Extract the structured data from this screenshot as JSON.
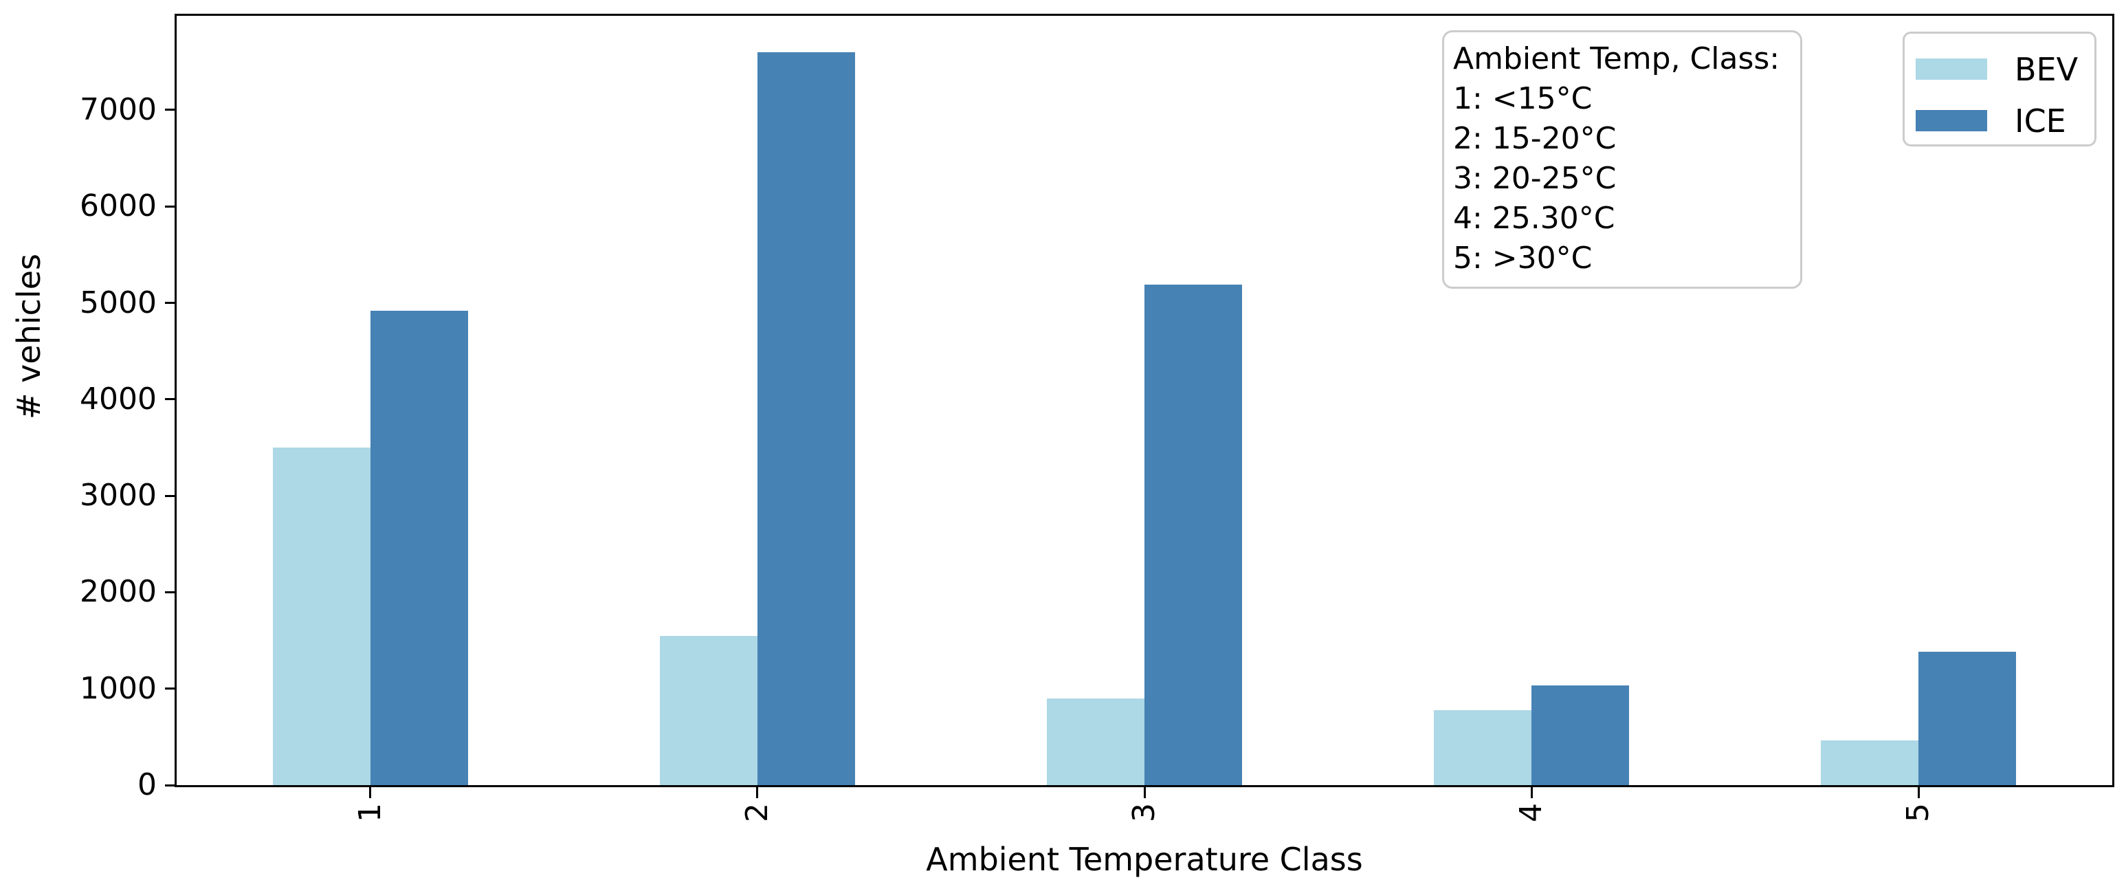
{
  "chart_data": {
    "type": "bar",
    "title": "",
    "xlabel": "Ambient Temperature Class",
    "ylabel": "# vehicles",
    "categories": [
      "1",
      "2",
      "3",
      "4",
      "5"
    ],
    "series": [
      {
        "name": "BEV",
        "color": "#ADD8E6",
        "values": [
          3500,
          1550,
          900,
          780,
          460
        ]
      },
      {
        "name": "ICE",
        "color": "#4682B4",
        "values": [
          4920,
          7600,
          5190,
          1030,
          1380
        ]
      }
    ],
    "ylim": [
      0,
      7976
    ],
    "yticks": [
      0,
      1000,
      2000,
      3000,
      4000,
      5000,
      6000,
      7000
    ],
    "grid": false,
    "legend_position": "upper right",
    "xtick_rotation": 90,
    "annotation": {
      "title": "Ambient Temp, Class:",
      "lines": [
        "1: <15°C",
        "2: 15-20°C",
        "3: 20-25°C",
        "4: 25.30°C",
        "5: >30°C"
      ]
    }
  },
  "legend": {
    "items": [
      {
        "label": "BEV",
        "color": "#ADD8E6"
      },
      {
        "label": "ICE",
        "color": "#4682B4"
      }
    ]
  },
  "colors": {
    "background": "#ffffff",
    "axis": "#000000",
    "bar_bev": "#ADD8E6",
    "bar_ice": "#4682B4",
    "box_border": "#cccccc",
    "text": "#000000"
  }
}
